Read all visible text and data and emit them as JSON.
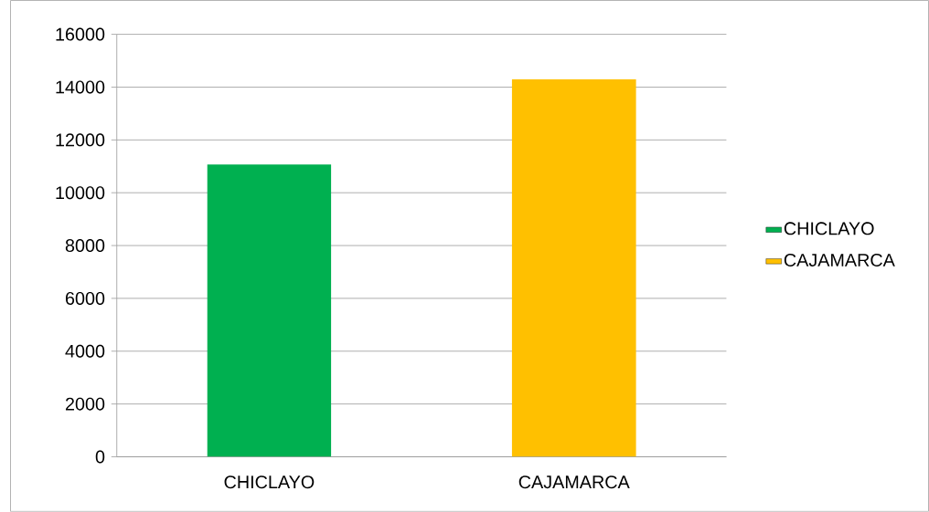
{
  "chart_data": {
    "type": "bar",
    "categories": [
      "CHICLAYO",
      "CAJAMARCA"
    ],
    "series": [
      {
        "name": "CHICLAYO",
        "color": "#00b050",
        "values": [
          11070,
          null
        ]
      },
      {
        "name": "CAJAMARCA",
        "color": "#ffc000",
        "values": [
          null,
          14300
        ]
      }
    ],
    "ylim": [
      0,
      16000
    ],
    "yticks": [
      0,
      2000,
      4000,
      6000,
      8000,
      10000,
      12000,
      14000,
      16000
    ],
    "grid": "y",
    "legend": "right"
  }
}
